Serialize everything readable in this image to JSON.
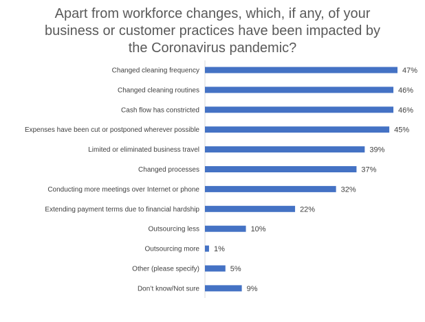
{
  "chart_data": {
    "type": "bar",
    "orientation": "horizontal",
    "title_lines": [
      "Apart from workforce changes, which, if any, of your",
      "business or customer practices have been impacted by",
      "the Coronavirus pandemic?"
    ],
    "categories": [
      "Changed cleaning frequency",
      "Changed cleaning routines",
      "Cash flow has constricted",
      "Expenses have been cut or postponed wherever possible",
      "Limited or eliminated business travel",
      "Changed processes",
      "Conducting more meetings over Internet or phone",
      "Extending payment terms due to financial hardship",
      "Outsourcing less",
      "Outsourcing more",
      "Other (please specify)",
      "Don’t know/Not sure"
    ],
    "values": [
      47,
      46,
      46,
      45,
      39,
      37,
      32,
      22,
      10,
      1,
      5,
      9
    ],
    "value_labels": [
      "47%",
      "46%",
      "46%",
      "45%",
      "39%",
      "37%",
      "32%",
      "22%",
      "10%",
      "1%",
      "5%",
      "9%"
    ],
    "xlim": [
      0,
      47
    ],
    "grid": false,
    "legend": "none",
    "bar_color": "#4472C4",
    "axis_color": "#d9d9d9"
  }
}
